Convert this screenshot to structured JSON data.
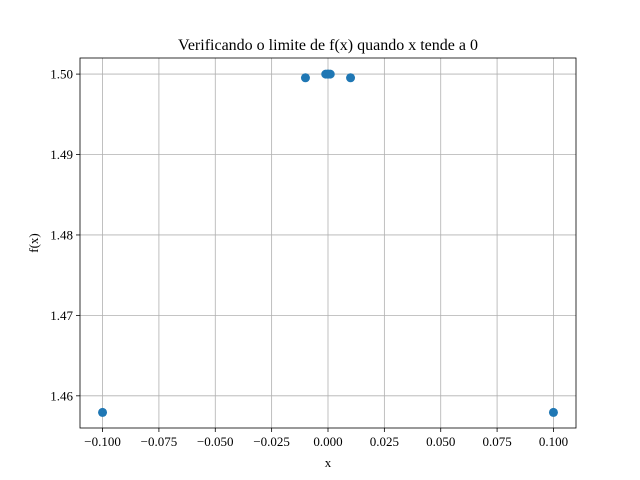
{
  "chart_data": {
    "type": "scatter",
    "title": "Verificando o limite de f(x) quando x tende a 0",
    "xlabel": "x",
    "ylabel": "f(x)",
    "x": [
      -0.1,
      -0.01,
      -0.001,
      -0.0001,
      0.0001,
      0.001,
      0.01,
      0.1
    ],
    "y": [
      1.45794,
      1.49954,
      1.499995,
      1.5,
      1.5,
      1.499995,
      1.49954,
      1.45794
    ],
    "xlim": [
      -0.11,
      0.11
    ],
    "ylim": [
      1.456,
      1.502
    ],
    "xticks": [
      -0.1,
      -0.075,
      -0.05,
      -0.025,
      0.0,
      0.025,
      0.05,
      0.075,
      0.1
    ],
    "xtick_labels": [
      "−0.100",
      "−0.075",
      "−0.050",
      "−0.025",
      "0.000",
      "0.025",
      "0.050",
      "0.075",
      "0.100"
    ],
    "yticks": [
      1.46,
      1.47,
      1.48,
      1.49,
      1.5
    ],
    "ytick_labels": [
      "1.46",
      "1.47",
      "1.48",
      "1.49",
      "1.50"
    ],
    "grid": true,
    "marker_color": "#1f77b4"
  }
}
